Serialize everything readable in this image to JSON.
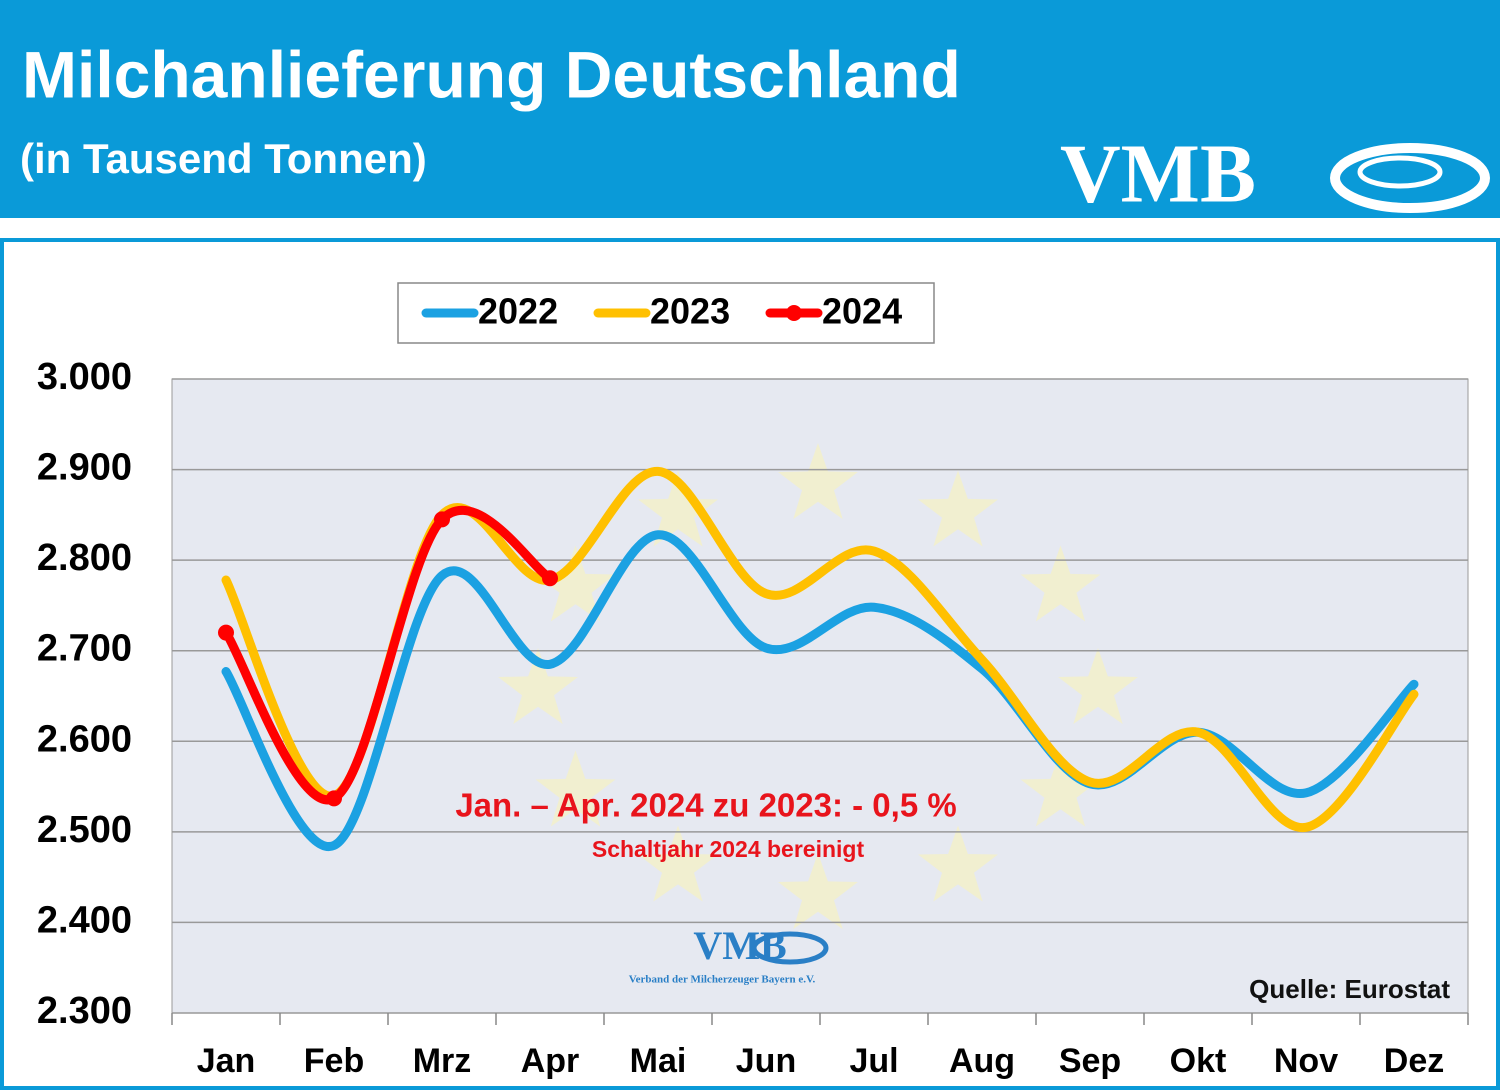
{
  "chart_data": {
    "type": "line",
    "title": "Milchanlieferung Deutschland",
    "subtitle": "(in Tausend Tonnen)",
    "logo_text": "VMB",
    "logo_caption": "Verband der Milcherzeuger Bayern e.V.",
    "annotations": [
      "Jan. – Apr. 2024 zu 2023: - 0,5 %",
      "Schaltjahr 2024 bereinigt",
      "Quelle: Eurostat"
    ],
    "categories": [
      "Jan",
      "Feb",
      "Mrz",
      "Apr",
      "Mai",
      "Jun",
      "Jul",
      "Aug",
      "Sep",
      "Okt",
      "Nov",
      "Dez"
    ],
    "series": [
      {
        "name": "2022",
        "color": "#1ba1e2",
        "markers": false,
        "values": [
          2677,
          2485,
          2783,
          2685,
          2828,
          2703,
          2748,
          2680,
          2553,
          2610,
          2543,
          2663
        ]
      },
      {
        "name": "2023",
        "color": "#ffc000",
        "markers": false,
        "values": [
          2778,
          2540,
          2850,
          2778,
          2898,
          2763,
          2810,
          2690,
          2555,
          2610,
          2505,
          2652
        ]
      },
      {
        "name": "2024",
        "color": "#ff0000",
        "markers": true,
        "values": [
          2720,
          2537,
          2845,
          2780,
          null,
          null,
          null,
          null,
          null,
          null,
          null,
          null
        ]
      }
    ],
    "ylim": [
      2300,
      3000
    ],
    "yticks": [
      {
        "value": 2300,
        "label": "2.300"
      },
      {
        "value": 2400,
        "label": "2.400"
      },
      {
        "value": 2500,
        "label": "2.500"
      },
      {
        "value": 2600,
        "label": "2.600"
      },
      {
        "value": 2700,
        "label": "2.700"
      },
      {
        "value": 2800,
        "label": "2.800"
      },
      {
        "value": 2900,
        "label": "2.900"
      },
      {
        "value": 3000,
        "label": "3.000"
      }
    ],
    "grid": true,
    "legend": "top"
  }
}
